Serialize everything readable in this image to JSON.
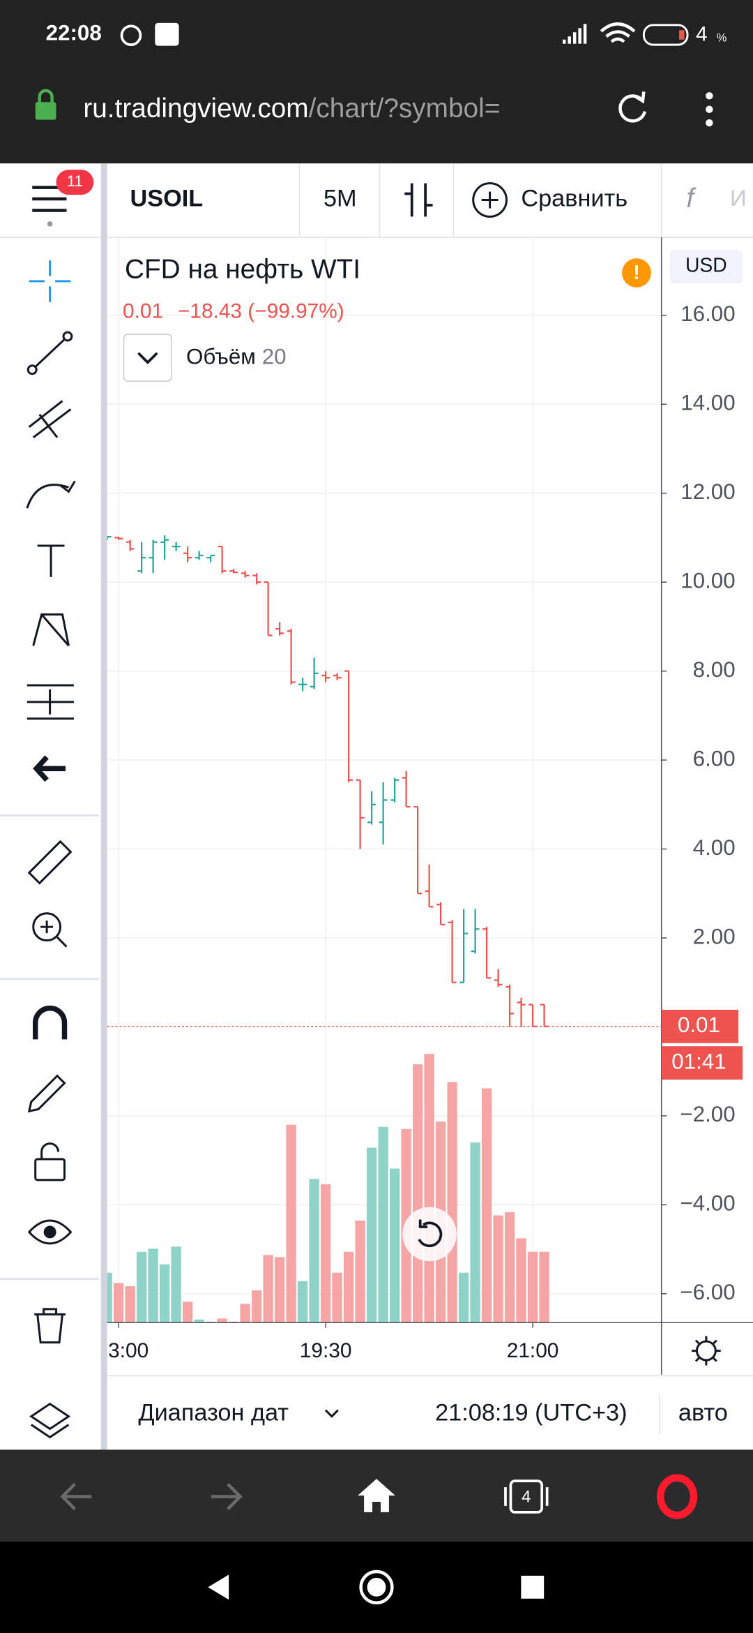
{
  "status_bar": {
    "time": "22:08",
    "battery": "4",
    "battery_unit": "%"
  },
  "browser": {
    "url_host": "ru.tradingview.com",
    "url_path": "/chart/?symbol="
  },
  "toolbar": {
    "badge": "11",
    "symbol": "USOIL",
    "interval": "5M",
    "compare": "Сравнить",
    "indicator_hint": "И"
  },
  "chart_data": {
    "type": "ohlc",
    "title": "CFD на нефть WTI",
    "currency": "USD",
    "quote": {
      "last": "0.01",
      "change": "−18.43 (−99.97%)"
    },
    "volume_legend": {
      "name": "Объём",
      "length": "20"
    },
    "last_price_label": "0.01",
    "countdown": "01:41",
    "up_color": "#26a69a",
    "down_color": "#ef5350",
    "volume_up_color": "#8fd3c8",
    "volume_down_color": "#f6a5a5",
    "grid": true,
    "categories": [
      null,
      "3:00",
      null,
      null,
      null,
      null,
      null,
      null,
      null,
      null,
      null,
      null,
      null,
      null,
      null,
      null,
      null,
      null,
      null,
      "19:30",
      null,
      null,
      null,
      null,
      null,
      null,
      null,
      null,
      null,
      null,
      null,
      null,
      null,
      null,
      null,
      null,
      null,
      "21:00",
      null
    ],
    "open": [
      11.0,
      11.0,
      10.9,
      10.25,
      10.55,
      10.9,
      10.8,
      10.65,
      10.55,
      10.55,
      10.8,
      10.25,
      10.2,
      10.15,
      10.0,
      8.95,
      8.9,
      7.7,
      7.65,
      7.9,
      7.9,
      8.0,
      5.55,
      4.6,
      4.6,
      5.1,
      5.6,
      4.95,
      3.05,
      2.75,
      2.35,
      1.0,
      1.7,
      2.2,
      1.05,
      0.9,
      0.55,
      0.5,
      0.5
    ],
    "high": [
      11.02,
      11.02,
      10.95,
      10.9,
      10.95,
      11.05,
      10.9,
      10.8,
      10.7,
      10.6,
      10.8,
      10.3,
      10.25,
      10.2,
      10.0,
      9.1,
      8.95,
      7.85,
      8.3,
      8.0,
      7.95,
      8.0,
      5.55,
      5.3,
      5.5,
      5.6,
      5.75,
      4.95,
      3.65,
      2.8,
      2.4,
      2.65,
      2.65,
      2.25,
      1.3,
      0.95,
      0.65,
      0.5,
      0.5
    ],
    "low": [
      10.95,
      10.95,
      10.7,
      10.2,
      10.2,
      10.5,
      10.7,
      10.45,
      10.5,
      10.45,
      10.2,
      10.2,
      10.1,
      9.95,
      8.8,
      8.8,
      7.7,
      7.55,
      7.6,
      7.75,
      7.8,
      5.5,
      4.0,
      4.55,
      4.1,
      5.05,
      4.95,
      3.0,
      2.7,
      2.3,
      1.0,
      1.0,
      1.65,
      1.1,
      0.9,
      0.0,
      0.0,
      0.0,
      0.0
    ],
    "close": [
      11.02,
      10.98,
      10.75,
      10.55,
      10.9,
      10.95,
      10.8,
      10.55,
      10.6,
      10.6,
      10.25,
      10.22,
      10.15,
      10.0,
      8.8,
      8.85,
      7.75,
      7.7,
      7.95,
      7.85,
      7.85,
      5.55,
      4.7,
      5.0,
      5.1,
      5.55,
      4.95,
      3.0,
      2.7,
      2.3,
      1.0,
      2.1,
      2.2,
      1.1,
      0.95,
      0.3,
      0.5,
      0.01,
      0.01
    ],
    "volume": [
      48,
      38,
      35,
      68,
      71,
      56,
      73,
      20,
      3,
      1,
      4,
      1,
      18,
      31,
      65,
      63,
      190,
      40,
      138,
      133,
      48,
      68,
      98,
      168,
      188,
      148,
      186,
      248,
      258,
      193,
      231,
      48,
      173,
      225,
      103,
      106,
      81,
      68,
      68
    ],
    "ylim": [
      -6.65,
      17.75
    ],
    "yticks": [
      {
        "value": 16,
        "label": "16.00"
      },
      {
        "value": 14,
        "label": "14.00"
      },
      {
        "value": 12,
        "label": "12.00"
      },
      {
        "value": 10,
        "label": "10.00"
      },
      {
        "value": 8,
        "label": "8.00"
      },
      {
        "value": 6,
        "label": "6.00"
      },
      {
        "value": 4,
        "label": "4.00"
      },
      {
        "value": 2,
        "label": "2.00"
      },
      {
        "value": -2,
        "label": "−2.00"
      },
      {
        "value": -4,
        "label": "−4.00"
      },
      {
        "value": -6,
        "label": "−6.00"
      }
    ],
    "vlim": [
      0,
      300
    ]
  },
  "footer": {
    "date_range": "Диапазон дат",
    "clock": "21:08:19 (UTC+3)",
    "auto": "авто"
  },
  "nav": {
    "tabs": "4"
  }
}
